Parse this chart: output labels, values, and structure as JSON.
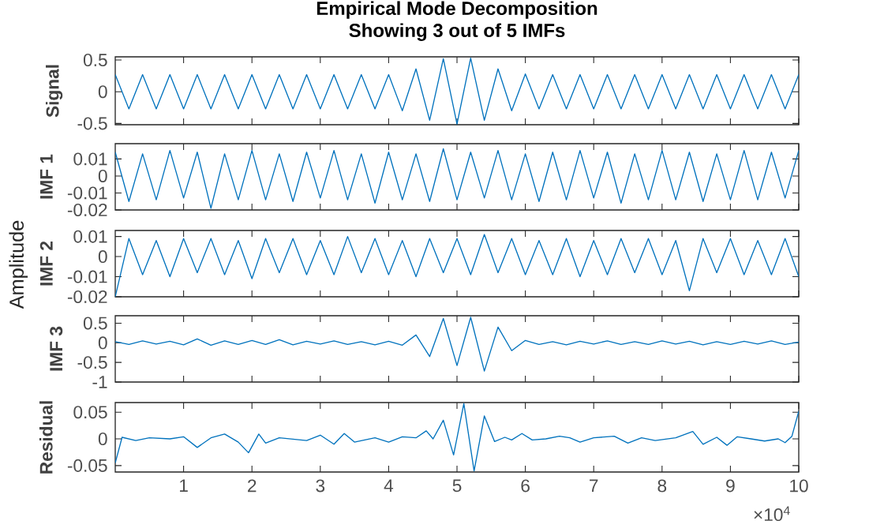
{
  "chart_data": [
    {
      "type": "line",
      "title": "Empirical Mode Decomposition",
      "subtitle": "Showing 3 out of 5 IMFs",
      "ylabel": "Signal",
      "color": "#0072bd",
      "tick_labels": "y",
      "xlim": [
        0,
        10
      ],
      "ylim": [
        -0.52,
        0.55
      ],
      "yticks": [
        -0.5,
        0,
        0.5
      ],
      "xticks": [
        1,
        2,
        3,
        4,
        5,
        6,
        7,
        8,
        9,
        10
      ],
      "x": [
        0,
        0.2,
        0.4,
        0.6,
        0.8,
        1,
        1.2,
        1.4,
        1.6,
        1.8,
        2,
        2.2,
        2.4,
        2.6,
        2.8,
        3,
        3.2,
        3.4,
        3.6,
        3.8,
        4,
        4.2,
        4.4,
        4.6,
        4.8,
        5,
        5.2,
        5.4,
        5.6,
        5.8,
        6,
        6.2,
        6.4,
        6.6,
        6.8,
        7,
        7.2,
        7.4,
        7.6,
        7.8,
        8,
        8.2,
        8.4,
        8.6,
        8.8,
        9,
        9.2,
        9.4,
        9.6,
        9.8,
        10
      ],
      "values": [
        0.27,
        -0.27,
        0.27,
        -0.27,
        0.27,
        -0.27,
        0.27,
        -0.27,
        0.27,
        -0.27,
        0.27,
        -0.27,
        0.27,
        -0.27,
        0.27,
        -0.27,
        0.27,
        -0.27,
        0.27,
        -0.27,
        0.27,
        -0.3,
        0.36,
        -0.45,
        0.52,
        -0.51,
        0.53,
        -0.45,
        0.36,
        -0.3,
        0.28,
        -0.27,
        0.27,
        -0.27,
        0.27,
        -0.27,
        0.27,
        -0.27,
        0.27,
        -0.27,
        0.27,
        -0.27,
        0.27,
        -0.27,
        0.27,
        -0.27,
        0.27,
        -0.27,
        0.27,
        -0.27,
        0.27
      ]
    },
    {
      "type": "line",
      "ylabel": "IMF 1",
      "color": "#0072bd",
      "tick_labels": "y",
      "xlim": [
        0,
        10
      ],
      "ylim": [
        -0.02,
        0.019
      ],
      "yticks": [
        -0.02,
        -0.01,
        0,
        0.01
      ],
      "xticks": [
        1,
        2,
        3,
        4,
        5,
        6,
        7,
        8,
        9,
        10
      ],
      "x": [
        0,
        0.2,
        0.4,
        0.6,
        0.8,
        1,
        1.2,
        1.4,
        1.6,
        1.8,
        2,
        2.2,
        2.4,
        2.6,
        2.8,
        3,
        3.2,
        3.4,
        3.6,
        3.8,
        4,
        4.2,
        4.4,
        4.6,
        4.8,
        5,
        5.2,
        5.4,
        5.6,
        5.8,
        6,
        6.2,
        6.4,
        6.6,
        6.8,
        7,
        7.2,
        7.4,
        7.6,
        7.8,
        8,
        8.2,
        8.4,
        8.6,
        8.8,
        9,
        9.2,
        9.4,
        9.6,
        9.8,
        10
      ],
      "values": [
        0.014,
        -0.015,
        0.013,
        -0.014,
        0.015,
        -0.013,
        0.014,
        -0.019,
        0.013,
        -0.014,
        0.015,
        -0.014,
        0.013,
        -0.015,
        0.014,
        -0.013,
        0.015,
        -0.014,
        0.013,
        -0.016,
        0.014,
        -0.014,
        0.013,
        -0.015,
        0.016,
        -0.014,
        0.014,
        -0.013,
        0.015,
        -0.014,
        0.013,
        -0.015,
        0.014,
        -0.014,
        0.015,
        -0.013,
        0.014,
        -0.016,
        0.013,
        -0.014,
        0.015,
        -0.014,
        0.014,
        -0.015,
        0.013,
        -0.014,
        0.015,
        -0.014,
        0.014,
        -0.013,
        0.015
      ]
    },
    {
      "type": "line",
      "ylabel": "IMF 2",
      "color": "#0072bd",
      "tick_labels": "y",
      "annotations": [
        "Amplitude"
      ],
      "xlim": [
        0,
        10
      ],
      "ylim": [
        -0.02,
        0.013
      ],
      "yticks": [
        -0.02,
        -0.01,
        0,
        0.01
      ],
      "xticks": [
        1,
        2,
        3,
        4,
        5,
        6,
        7,
        8,
        9,
        10
      ],
      "x": [
        0,
        0.2,
        0.4,
        0.6,
        0.8,
        1,
        1.2,
        1.4,
        1.6,
        1.8,
        2,
        2.2,
        2.4,
        2.6,
        2.8,
        3,
        3.2,
        3.4,
        3.6,
        3.8,
        4,
        4.2,
        4.4,
        4.6,
        4.8,
        5,
        5.2,
        5.4,
        5.6,
        5.8,
        6,
        6.2,
        6.4,
        6.6,
        6.8,
        7,
        7.2,
        7.4,
        7.6,
        7.8,
        8,
        8.2,
        8.4,
        8.6,
        8.8,
        9,
        9.2,
        9.4,
        9.6,
        9.8,
        10
      ],
      "values": [
        -0.02,
        0.009,
        -0.009,
        0.008,
        -0.01,
        0.009,
        -0.008,
        0.009,
        -0.009,
        0.008,
        -0.011,
        0.009,
        -0.008,
        0.009,
        -0.009,
        0.008,
        -0.009,
        0.01,
        -0.008,
        0.009,
        -0.009,
        0.008,
        -0.01,
        0.009,
        -0.008,
        0.009,
        -0.009,
        0.011,
        -0.008,
        0.009,
        -0.009,
        0.008,
        -0.009,
        0.009,
        -0.01,
        0.008,
        -0.009,
        0.009,
        -0.008,
        0.009,
        -0.009,
        0.008,
        -0.017,
        0.009,
        -0.008,
        0.009,
        -0.009,
        0.008,
        -0.009,
        0.009,
        -0.01
      ]
    },
    {
      "type": "line",
      "ylabel": "IMF 3",
      "color": "#0072bd",
      "tick_labels": "y",
      "xlim": [
        0,
        10
      ],
      "ylim": [
        -1,
        0.69
      ],
      "yticks": [
        -1,
        -0.5,
        0,
        0.5
      ],
      "xticks": [
        1,
        2,
        3,
        4,
        5,
        6,
        7,
        8,
        9,
        10
      ],
      "x": [
        0,
        0.2,
        0.4,
        0.6,
        0.8,
        1,
        1.2,
        1.4,
        1.6,
        1.8,
        2,
        2.2,
        2.4,
        2.6,
        2.8,
        3,
        3.2,
        3.4,
        3.6,
        3.8,
        4,
        4.2,
        4.4,
        4.6,
        4.8,
        5,
        5.2,
        5.4,
        5.6,
        5.8,
        6,
        6.2,
        6.4,
        6.6,
        6.8,
        7,
        7.2,
        7.4,
        7.6,
        7.8,
        8,
        8.2,
        8.4,
        8.6,
        8.8,
        9,
        9.2,
        9.4,
        9.6,
        9.8,
        10
      ],
      "values": [
        0.03,
        -0.04,
        0.05,
        -0.03,
        0.04,
        -0.05,
        0.1,
        -0.06,
        0.05,
        -0.04,
        0.06,
        -0.04,
        0.08,
        -0.05,
        0.04,
        -0.03,
        0.05,
        -0.04,
        0.03,
        -0.05,
        0.04,
        -0.06,
        0.2,
        -0.35,
        0.62,
        -0.58,
        0.65,
        -0.72,
        0.4,
        -0.2,
        0.06,
        -0.04,
        0.03,
        -0.05,
        0.04,
        -0.03,
        0.05,
        -0.04,
        0.03,
        -0.04,
        0.05,
        -0.03,
        0.04,
        -0.05,
        0.03,
        -0.04,
        0.04,
        -0.03,
        0.05,
        -0.04,
        0.02
      ]
    },
    {
      "type": "line",
      "ylabel": "Residual",
      "color": "#0072bd",
      "annotations": [
        "×10$^{4}$"
      ],
      "xlim": [
        0,
        10
      ],
      "ylim": [
        -0.062,
        0.068
      ],
      "yticks": [
        -0.05,
        0,
        0.05
      ],
      "xticks": [
        1,
        2,
        3,
        4,
        5,
        6,
        7,
        8,
        9,
        10
      ],
      "x": [
        0,
        0.1,
        0.3,
        0.5,
        0.8,
        1,
        1.2,
        1.4,
        1.6,
        1.8,
        1.95,
        2.1,
        2.2,
        2.4,
        2.8,
        3,
        3.2,
        3.35,
        3.5,
        3.8,
        4,
        4.2,
        4.4,
        4.55,
        4.65,
        4.8,
        4.95,
        5.1,
        5.25,
        5.4,
        5.55,
        5.7,
        5.8,
        5.95,
        6.1,
        6.3,
        6.5,
        6.65,
        6.8,
        7,
        7.3,
        7.5,
        7.7,
        7.9,
        8.2,
        8.45,
        8.6,
        8.8,
        8.95,
        9.1,
        9.3,
        9.5,
        9.7,
        9.8,
        9.9,
        10
      ],
      "values": [
        -0.045,
        0.003,
        -0.003,
        0.002,
        0.0,
        0.004,
        -0.016,
        0.002,
        0.009,
        -0.006,
        -0.026,
        0.009,
        -0.008,
        0.002,
        -0.003,
        0.007,
        -0.01,
        0.01,
        -0.006,
        0.002,
        -0.006,
        0.004,
        0.002,
        0.015,
        0.0,
        0.035,
        -0.03,
        0.066,
        -0.06,
        0.043,
        -0.005,
        0.003,
        -0.002,
        0.01,
        -0.002,
        0.0,
        0.005,
        0.002,
        -0.006,
        0.002,
        0.005,
        -0.008,
        0.002,
        -0.003,
        0.002,
        0.014,
        -0.01,
        0.003,
        -0.012,
        0.004,
        0.0,
        -0.004,
        0.0,
        -0.007,
        0.005,
        0.052
      ]
    }
  ]
}
